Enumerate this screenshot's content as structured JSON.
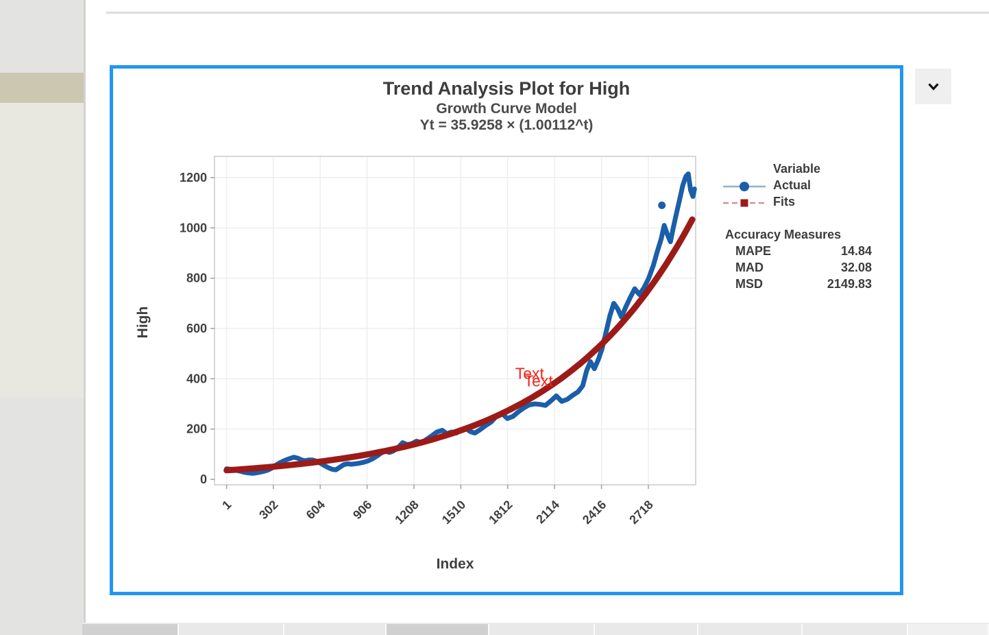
{
  "window": {
    "selection_border_color": "#2196f3",
    "collapse_button_icon": "chevron-down"
  },
  "chart_data": {
    "type": "line",
    "title": "Trend Analysis Plot for High",
    "subtitle": "Growth Curve Model",
    "equation": "Yt = 35.9258 × (1.00112^t)",
    "xlabel": "Index",
    "ylabel": "High",
    "x_ticks": [
      1,
      302,
      604,
      906,
      1208,
      1510,
      1812,
      2114,
      2416,
      2718
    ],
    "y_ticks": [
      0,
      200,
      400,
      600,
      800,
      1000,
      1200
    ],
    "xlim": [
      -80,
      3025
    ],
    "ylim": [
      -20,
      1285
    ],
    "grid": true,
    "legend": {
      "header": "Variable",
      "entries": [
        "Actual",
        "Fits"
      ],
      "position": "right"
    },
    "accuracy": {
      "header": "Accuracy Measures",
      "rows": [
        {
          "label": "MAPE",
          "value": "14.84"
        },
        {
          "label": "MAD",
          "value": "32.08"
        },
        {
          "label": "MSD",
          "value": "2149.83"
        }
      ]
    },
    "series": [
      {
        "name": "Actual",
        "color": "#1B5EA9",
        "legend_line_color": "#8FAFD6",
        "marker": "circle",
        "points": [
          [
            1,
            42
          ],
          [
            25,
            40
          ],
          [
            55,
            37
          ],
          [
            85,
            33
          ],
          [
            115,
            28
          ],
          [
            145,
            25
          ],
          [
            175,
            24
          ],
          [
            205,
            27
          ],
          [
            235,
            31
          ],
          [
            265,
            36
          ],
          [
            290,
            44
          ],
          [
            315,
            55
          ],
          [
            345,
            66
          ],
          [
            375,
            75
          ],
          [
            405,
            82
          ],
          [
            435,
            88
          ],
          [
            460,
            84
          ],
          [
            480,
            78
          ],
          [
            505,
            74
          ],
          [
            530,
            77
          ],
          [
            555,
            77
          ],
          [
            580,
            72
          ],
          [
            605,
            64
          ],
          [
            630,
            55
          ],
          [
            655,
            47
          ],
          [
            680,
            40
          ],
          [
            705,
            38
          ],
          [
            730,
            48
          ],
          [
            755,
            58
          ],
          [
            780,
            62
          ],
          [
            805,
            60
          ],
          [
            830,
            62
          ],
          [
            855,
            64
          ],
          [
            885,
            68
          ],
          [
            915,
            74
          ],
          [
            945,
            83
          ],
          [
            975,
            95
          ],
          [
            1000,
            106
          ],
          [
            1025,
            112
          ],
          [
            1050,
            107
          ],
          [
            1075,
            113
          ],
          [
            1105,
            126
          ],
          [
            1135,
            146
          ],
          [
            1165,
            138
          ],
          [
            1195,
            142
          ],
          [
            1225,
            152
          ],
          [
            1255,
            145
          ],
          [
            1285,
            157
          ],
          [
            1320,
            172
          ],
          [
            1355,
            188
          ],
          [
            1390,
            195
          ],
          [
            1420,
            182
          ],
          [
            1450,
            188
          ],
          [
            1480,
            184
          ],
          [
            1510,
            196
          ],
          [
            1540,
            203
          ],
          [
            1570,
            190
          ],
          [
            1600,
            184
          ],
          [
            1635,
            198
          ],
          [
            1670,
            214
          ],
          [
            1705,
            228
          ],
          [
            1740,
            252
          ],
          [
            1775,
            262
          ],
          [
            1810,
            242
          ],
          [
            1845,
            250
          ],
          [
            1880,
            268
          ],
          [
            1915,
            284
          ],
          [
            1950,
            296
          ],
          [
            1985,
            300
          ],
          [
            2020,
            298
          ],
          [
            2055,
            294
          ],
          [
            2090,
            312
          ],
          [
            2125,
            332
          ],
          [
            2160,
            310
          ],
          [
            2195,
            318
          ],
          [
            2230,
            334
          ],
          [
            2265,
            348
          ],
          [
            2295,
            372
          ],
          [
            2320,
            432
          ],
          [
            2345,
            468
          ],
          [
            2370,
            440
          ],
          [
            2395,
            475
          ],
          [
            2420,
            520
          ],
          [
            2445,
            585
          ],
          [
            2470,
            650
          ],
          [
            2495,
            700
          ],
          [
            2520,
            678
          ],
          [
            2545,
            645
          ],
          [
            2570,
            682
          ],
          [
            2600,
            722
          ],
          [
            2630,
            758
          ],
          [
            2660,
            735
          ],
          [
            2690,
            762
          ],
          [
            2720,
            800
          ],
          [
            2750,
            850
          ],
          [
            2775,
            905
          ],
          [
            2800,
            955
          ],
          [
            2820,
            1010
          ],
          [
            2840,
            975
          ],
          [
            2860,
            945
          ],
          [
            2880,
            1005
          ],
          [
            2900,
            1060
          ],
          [
            2920,
            1115
          ],
          [
            2940,
            1170
          ],
          [
            2960,
            1205
          ],
          [
            2975,
            1215
          ],
          [
            2990,
            1150
          ],
          [
            3005,
            1125
          ],
          [
            3015,
            1155
          ]
        ],
        "outlier_point": [
          2805,
          1090
        ]
      },
      {
        "name": "Fits",
        "color": "#9C1B18",
        "legend_line_color": "#D39390",
        "marker": "square",
        "model": {
          "coef": 35.9258,
          "base": 1.00112,
          "t_start": 1,
          "t_end": 3020
        }
      }
    ],
    "annotations": [
      {
        "text": "Text",
        "x": 1860,
        "y": 400,
        "color": "#f2261c"
      },
      {
        "text": "Text",
        "x": 1917,
        "y": 370,
        "color": "#f2261c"
      }
    ]
  },
  "bottom_strip": {
    "cells": [
      {
        "tone": "dark"
      },
      {
        "tone": "light"
      },
      {
        "tone": "light"
      },
      {
        "tone": "dark"
      },
      {
        "tone": "light"
      },
      {
        "tone": "light"
      },
      {
        "tone": "light"
      },
      {
        "tone": "light"
      },
      {
        "tone": "lighter"
      }
    ]
  }
}
